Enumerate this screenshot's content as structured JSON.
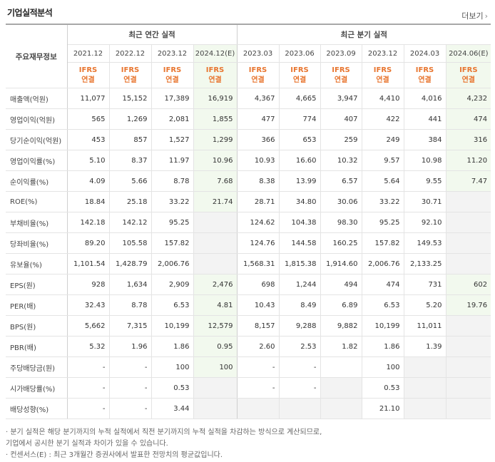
{
  "title": "기업실적분석",
  "more": "더보기",
  "header": {
    "row_label": "주요재무정보",
    "annual": "최근 연간 실적",
    "quarterly": "최근 분기 실적",
    "periods": [
      "2021.12",
      "2022.12",
      "2023.12",
      "2024.12(E)",
      "2023.03",
      "2023.06",
      "2023.09",
      "2023.12",
      "2024.03",
      "2024.06(E)"
    ],
    "ifrs": "IFRS",
    "consol": "연결"
  },
  "rows": [
    {
      "label": "매출액(억원)",
      "v": [
        "11,077",
        "15,152",
        "17,389",
        "16,919",
        "4,367",
        "4,665",
        "3,947",
        "4,410",
        "4,016",
        "4,232"
      ]
    },
    {
      "label": "영업이익(억원)",
      "v": [
        "565",
        "1,269",
        "2,081",
        "1,855",
        "477",
        "774",
        "407",
        "422",
        "441",
        "474"
      ]
    },
    {
      "label": "당기순이익(억원)",
      "v": [
        "453",
        "857",
        "1,527",
        "1,299",
        "366",
        "653",
        "259",
        "249",
        "384",
        "316"
      ]
    },
    {
      "label": "영업이익률(%)",
      "v": [
        "5.10",
        "8.37",
        "11.97",
        "10.96",
        "10.93",
        "16.60",
        "10.32",
        "9.57",
        "10.98",
        "11.20"
      ]
    },
    {
      "label": "순이익률(%)",
      "v": [
        "4.09",
        "5.66",
        "8.78",
        "7.68",
        "8.38",
        "13.99",
        "6.57",
        "5.64",
        "9.55",
        "7.47"
      ]
    },
    {
      "label": "ROE(%)",
      "v": [
        "18.84",
        "25.18",
        "33.22",
        "21.74",
        "28.71",
        "34.80",
        "30.06",
        "33.22",
        "30.71",
        ""
      ]
    },
    {
      "label": "부채비율(%)",
      "v": [
        "142.18",
        "142.12",
        "95.25",
        "",
        "124.62",
        "104.38",
        "98.30",
        "95.25",
        "92.10",
        ""
      ]
    },
    {
      "label": "당좌비율(%)",
      "v": [
        "89.20",
        "105.58",
        "157.82",
        "",
        "124.76",
        "144.58",
        "160.25",
        "157.82",
        "149.53",
        ""
      ]
    },
    {
      "label": "유보율(%)",
      "v": [
        "1,101.54",
        "1,428.79",
        "2,006.76",
        "",
        "1,568.31",
        "1,815.38",
        "1,914.60",
        "2,006.76",
        "2,133.25",
        ""
      ]
    },
    {
      "label": "EPS(원)",
      "v": [
        "928",
        "1,634",
        "2,909",
        "2,476",
        "698",
        "1,244",
        "494",
        "474",
        "731",
        "602"
      ]
    },
    {
      "label": "PER(배)",
      "v": [
        "32.43",
        "8.78",
        "6.53",
        "4.81",
        "10.43",
        "8.49",
        "6.89",
        "6.53",
        "5.20",
        "19.76"
      ]
    },
    {
      "label": "BPS(원)",
      "v": [
        "5,662",
        "7,315",
        "10,199",
        "12,579",
        "8,157",
        "9,288",
        "9,882",
        "10,199",
        "11,011",
        ""
      ]
    },
    {
      "label": "PBR(배)",
      "v": [
        "5.32",
        "1.96",
        "1.86",
        "0.95",
        "2.60",
        "2.53",
        "1.82",
        "1.86",
        "1.39",
        ""
      ]
    },
    {
      "label": "주당배당금(원)",
      "v": [
        "-",
        "-",
        "100",
        "100",
        "-",
        "-",
        "",
        "100",
        "",
        ""
      ]
    },
    {
      "label": "시가배당률(%)",
      "v": [
        "-",
        "-",
        "0.53",
        "",
        "-",
        "-",
        "",
        "0.53",
        "",
        ""
      ]
    },
    {
      "label": "배당성향(%)",
      "v": [
        "-",
        "-",
        "3.44",
        "",
        "",
        "",
        "",
        "21.10",
        "",
        ""
      ]
    }
  ],
  "notes": [
    "· 분기 실적은 해당 분기까지의 누적 실적에서 직전 분기까지의 누적 실적을 차감하는 방식으로 계산되므로,",
    "  기업에서 공시한 분기 실적과 차이가 있을 수 있습니다.",
    "· 컨센서스(E) : 최근 3개월간 증권사에서 발표한 전망치의 평균값입니다."
  ]
}
